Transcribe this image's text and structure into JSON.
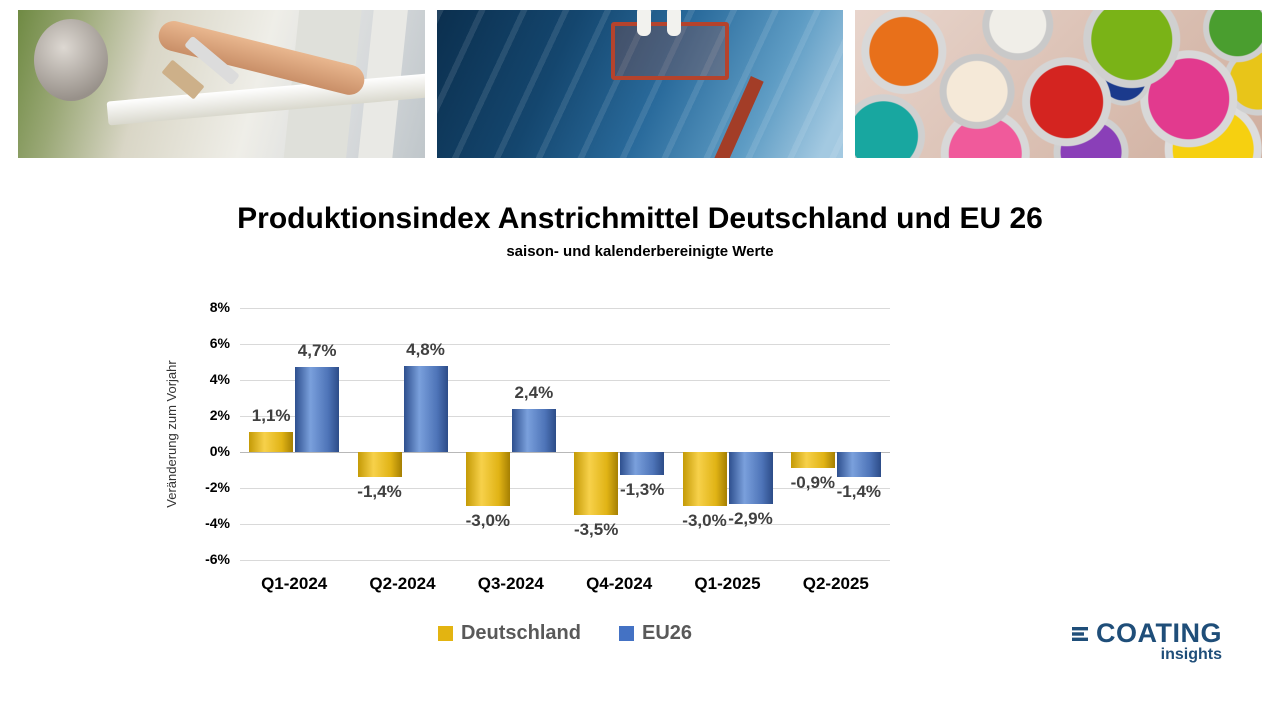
{
  "title": "Produktionsindex Anstrichmittel Deutschland und EU 26",
  "subtitle": "saison- und kalenderbereinigte Werte",
  "chart_data": {
    "type": "bar",
    "categories": [
      "Q1-2024",
      "Q2-2024",
      "Q3-2024",
      "Q4-2024",
      "Q1-2025",
      "Q2-2025"
    ],
    "series": [
      {
        "name": "Deutschland",
        "color": "#E3B411",
        "values": [
          1.1,
          -1.4,
          -3.0,
          -3.5,
          -3.0,
          -0.9
        ],
        "labels": [
          "1,1%",
          "-1,4%",
          "-3,0%",
          "-3,5%",
          "-3,0%",
          "-0,9%"
        ]
      },
      {
        "name": "EU26",
        "color": "#4472C4",
        "values": [
          4.7,
          4.8,
          2.4,
          -1.3,
          -2.9,
          -1.4
        ],
        "labels": [
          "4,7%",
          "4,8%",
          "2,4%",
          "-1,3%",
          "-2,9%",
          "-1,4%"
        ]
      }
    ],
    "ylabel": "Veränderung zum Vorjahr",
    "ylim": [
      -6,
      8
    ],
    "ytick_step": 2,
    "ytick_labels": [
      "8%",
      "6%",
      "4%",
      "2%",
      "0%",
      "-2%",
      "-4%",
      "-6%"
    ],
    "grid": true,
    "legend_position": "bottom"
  },
  "banners": [
    {
      "name": "window-painting-photo"
    },
    {
      "name": "ship-hull-painting-photo"
    },
    {
      "name": "paint-cans-photo"
    }
  ],
  "logo": {
    "line1": "COATING",
    "line2": "insights",
    "color": "#1F4E79"
  }
}
